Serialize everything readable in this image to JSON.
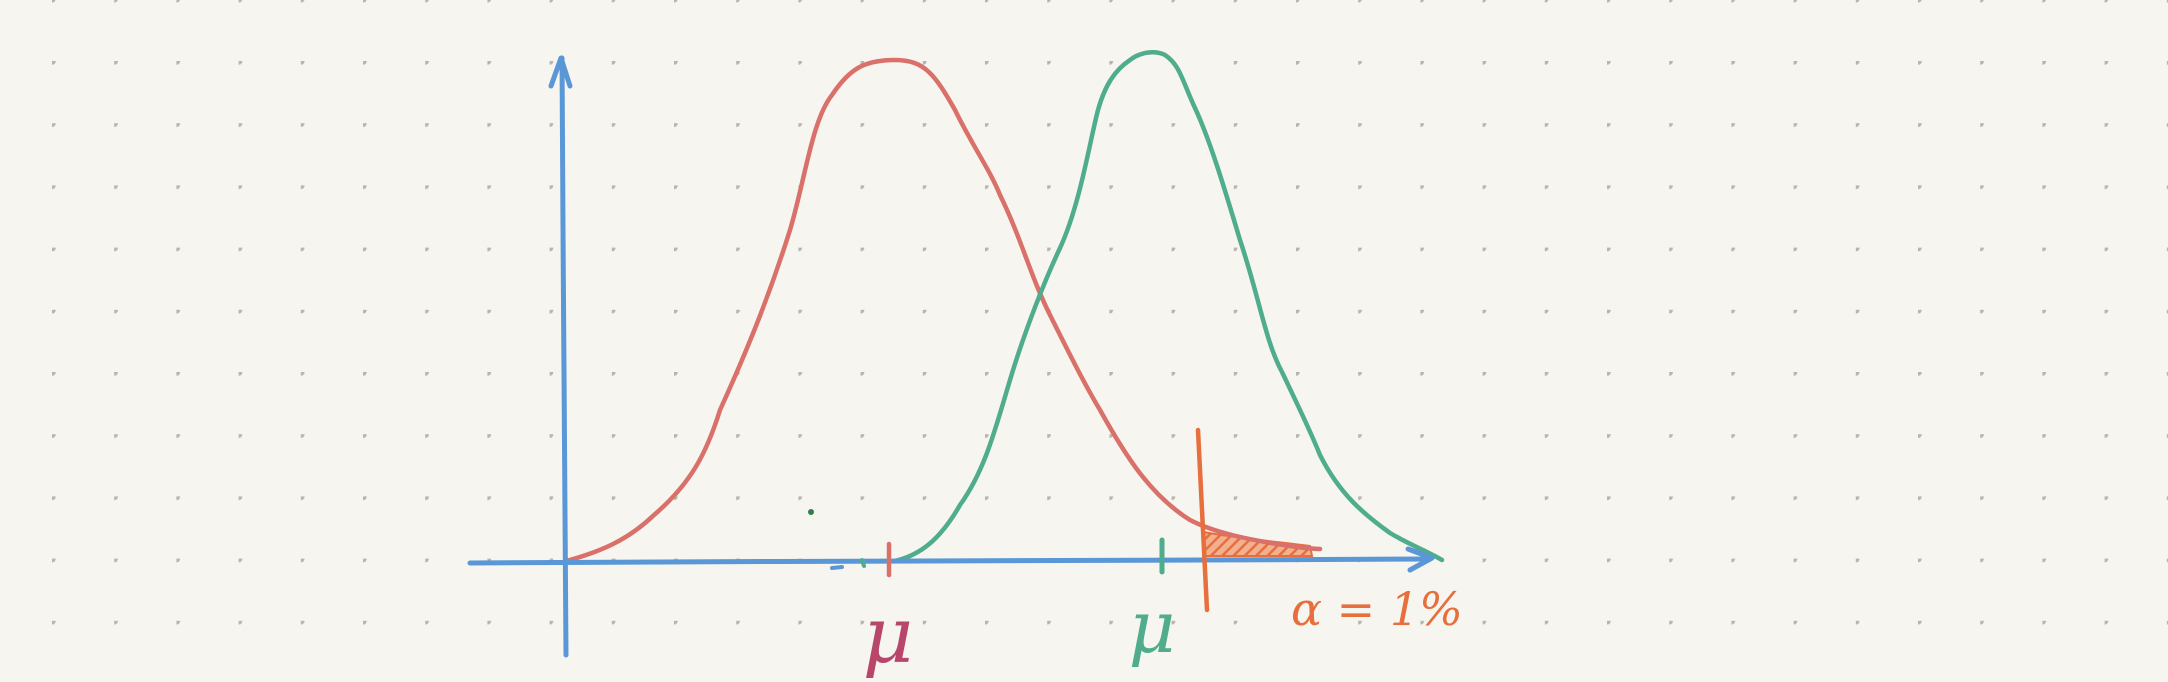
{
  "colors": {
    "paper": "#f7f5ef",
    "dot": "#b7b5ae",
    "axis": "#5a97d6",
    "null_curve": "#d9706a",
    "alt_curve": "#4fac8c",
    "critical": "#e66f3d",
    "mu_null_label": "#b8456a",
    "mu_alt_label": "#4fac8c"
  },
  "labels": {
    "mu_null": "μ",
    "mu_alt": "μ",
    "alpha": "α = 1%"
  },
  "icons": {
    "y_arrow": "arrow-up-icon",
    "x_arrow": "arrow-right-icon"
  }
}
